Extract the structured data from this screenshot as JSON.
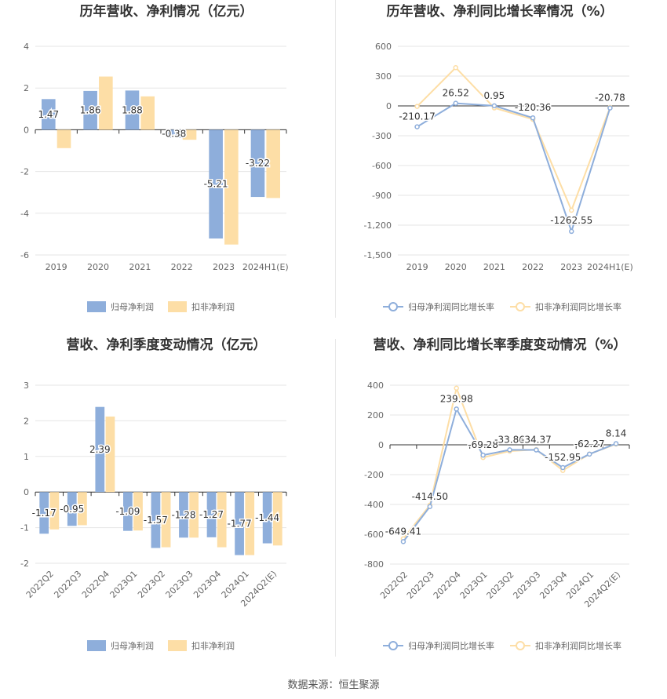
{
  "source_label": "数据来源：恒生聚源",
  "chart_data": [
    {
      "type": "bar",
      "title": "历年营收、净利情况（亿元）",
      "categories": [
        "2019",
        "2020",
        "2021",
        "2022",
        "2023",
        "2024H1(E)"
      ],
      "series": [
        {
          "name": "归母净利润",
          "color": "#8eaedb",
          "values": [
            1.47,
            1.86,
            1.88,
            -0.38,
            -5.21,
            -3.22
          ]
        },
        {
          "name": "扣非净利润",
          "color": "#fddea6",
          "values": [
            -0.88,
            2.55,
            1.6,
            -0.48,
            -5.5,
            -3.27
          ]
        }
      ],
      "data_labels": [
        "1.47",
        "1.86",
        "1.88",
        "-0.38",
        "-5.21",
        "-3.22"
      ],
      "ylim": [
        -6,
        4
      ],
      "yticks": [
        "4",
        "2",
        "0",
        "-2",
        "-4",
        "-6"
      ],
      "grid": true,
      "legend_position": "bottom"
    },
    {
      "type": "line",
      "title": "历年营收、净利同比增长率情况（%）",
      "categories": [
        "2019",
        "2020",
        "2021",
        "2022",
        "2023",
        "2024H1(E)"
      ],
      "series": [
        {
          "name": "归母净利润同比增长率",
          "color": "#8eaedb",
          "values": [
            -210.17,
            26.52,
            0.95,
            -120.36,
            -1262.55,
            -20.78
          ]
        },
        {
          "name": "扣非净利润同比增长率",
          "color": "#fddea6",
          "values": [
            -5,
            385,
            -20,
            -135,
            -1050,
            -15
          ]
        }
      ],
      "data_labels": [
        "-210.17",
        "26.52",
        "0.95",
        "-120.36",
        "-1262.55",
        "-20.78"
      ],
      "ylim": [
        -1500,
        600
      ],
      "yticks": [
        "600",
        "300",
        "0",
        "-300",
        "-600",
        "-900",
        "-1,200",
        "-1,500"
      ],
      "grid": true,
      "legend_position": "bottom"
    },
    {
      "type": "bar",
      "title": "营收、净利季度变动情况（亿元）",
      "categories": [
        "2022Q2",
        "2022Q3",
        "2022Q4",
        "2023Q1",
        "2023Q2",
        "2023Q3",
        "2023Q4",
        "2024Q1",
        "2024Q2(E)"
      ],
      "series": [
        {
          "name": "归母净利润",
          "color": "#8eaedb",
          "values": [
            -1.17,
            -0.95,
            2.39,
            -1.09,
            -1.57,
            -1.28,
            -1.27,
            -1.77,
            -1.44
          ]
        },
        {
          "name": "扣非净利润",
          "color": "#fddea6",
          "values": [
            -1.05,
            -0.93,
            2.12,
            -1.08,
            -1.55,
            -1.28,
            -1.55,
            -1.77,
            -1.5
          ]
        }
      ],
      "data_labels": [
        "-1.17",
        "-0.95",
        "2.39",
        "-1.09",
        "-1.57",
        "-1.28",
        "-1.27",
        "-1.77",
        "-1.44"
      ],
      "ylim": [
        -2,
        3
      ],
      "yticks": [
        "3",
        "2",
        "1",
        "0",
        "-1",
        "-2"
      ],
      "grid": true,
      "legend_position": "bottom"
    },
    {
      "type": "line",
      "title": "营收、净利同比增长率季度变动情况（%）",
      "categories": [
        "2022Q2",
        "2022Q3",
        "2022Q4",
        "2023Q1",
        "2023Q2",
        "2023Q3",
        "2023Q4",
        "2024Q1",
        "2024Q2(E)"
      ],
      "series": [
        {
          "name": "归母净利润同比增长率",
          "color": "#8eaedb",
          "values": [
            -649.41,
            -414.5,
            239.98,
            -69.28,
            -33.86,
            -34.37,
            -152.95,
            -62.27,
            8.14
          ]
        },
        {
          "name": "扣非净利润同比增长率",
          "color": "#fddea6",
          "values": [
            -630,
            -405,
            380,
            -85,
            -42,
            -32,
            -172,
            -62,
            5
          ]
        }
      ],
      "data_labels": [
        "-649.41",
        "-414.50",
        "239.98",
        "-69.28",
        "-33.86",
        "-34.37",
        "-152.95",
        "-62.27",
        "8.14"
      ],
      "ylim": [
        -800,
        400
      ],
      "yticks": [
        "400",
        "200",
        "0",
        "-200",
        "-400",
        "-600",
        "-800"
      ],
      "grid": true,
      "legend_position": "bottom"
    }
  ]
}
